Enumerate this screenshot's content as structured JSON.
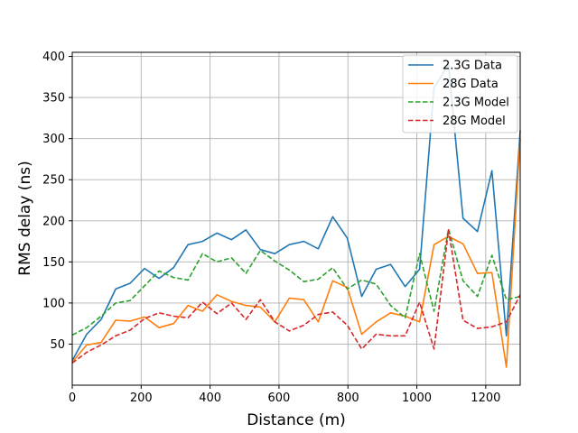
{
  "chart_data": {
    "type": "line",
    "xlabel": "Distance (m)",
    "ylabel": "RMS delay (ns)",
    "xlim": [
      0,
      1300
    ],
    "ylim": [
      0,
      405
    ],
    "x_ticks": [
      0,
      200,
      400,
      600,
      800,
      1000,
      1200
    ],
    "y_ticks": [
      50,
      100,
      150,
      200,
      250,
      300,
      350,
      400
    ],
    "grid": true,
    "legend_position": "top-right",
    "x": [
      0,
      42,
      84,
      126,
      168,
      210,
      252,
      294,
      336,
      378,
      420,
      462,
      504,
      546,
      588,
      630,
      672,
      714,
      756,
      798,
      840,
      882,
      924,
      966,
      1008,
      1050,
      1092,
      1134,
      1176,
      1218,
      1260,
      1300
    ],
    "series": [
      {
        "name": "2.3G Data",
        "color": "#1f77b4",
        "dash": "solid",
        "values": [
          30,
          62,
          80,
          117,
          124,
          142,
          130,
          143,
          171,
          175,
          185,
          177,
          189,
          165,
          160,
          171,
          175,
          166,
          205,
          179,
          108,
          141,
          147,
          120,
          141,
          362,
          390,
          203,
          187,
          261,
          60,
          310
        ]
      },
      {
        "name": "28G Data",
        "color": "#ff7f0e",
        "dash": "solid",
        "values": [
          28,
          49,
          52,
          79,
          78,
          83,
          70,
          75,
          97,
          90,
          110,
          102,
          97,
          95,
          77,
          106,
          104,
          77,
          127,
          119,
          62,
          77,
          88,
          84,
          77,
          171,
          181,
          172,
          136,
          137,
          22,
          300
        ]
      },
      {
        "name": "2.3G Model",
        "color": "#2ca02c",
        "dash": "dashed",
        "values": [
          61,
          70,
          84,
          100,
          103,
          121,
          139,
          131,
          128,
          160,
          150,
          155,
          136,
          164,
          151,
          140,
          126,
          129,
          143,
          117,
          128,
          123,
          97,
          82,
          160,
          90,
          190,
          127,
          108,
          158,
          104,
          108
        ]
      },
      {
        "name": "28G Model",
        "color": "#d62728",
        "dash": "dashed",
        "values": [
          27,
          40,
          49,
          60,
          67,
          81,
          88,
          84,
          82,
          101,
          87,
          100,
          80,
          104,
          77,
          66,
          73,
          86,
          89,
          73,
          44,
          62,
          60,
          60,
          101,
          44,
          189,
          79,
          69,
          71,
          77,
          110
        ]
      }
    ]
  }
}
